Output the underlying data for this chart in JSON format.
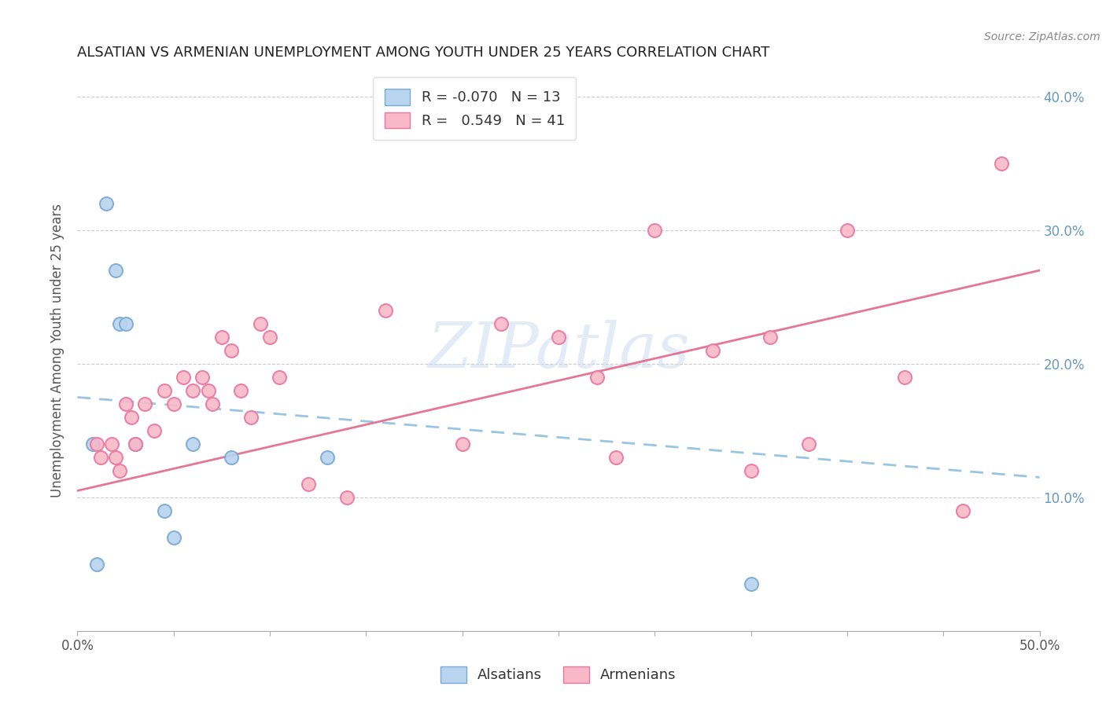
{
  "title": "ALSATIAN VS ARMENIAN UNEMPLOYMENT AMONG YOUTH UNDER 25 YEARS CORRELATION CHART",
  "source": "Source: ZipAtlas.com",
  "ylabel": "Unemployment Among Youth under 25 years",
  "xlim": [
    0.0,
    0.5
  ],
  "ylim": [
    0.0,
    0.42
  ],
  "alsatian_R": -0.07,
  "alsatian_N": 13,
  "armenian_R": 0.549,
  "armenian_N": 41,
  "alsatian_fill": "#b8d4ee",
  "armenian_fill": "#f8b8c8",
  "alsatian_edge": "#7aaad4",
  "armenian_edge": "#e878a0",
  "alsatian_line_color": "#88bbdd",
  "armenian_line_color": "#e06888",
  "tick_label_color": "#6699bb",
  "watermark_color": "#ccddf0",
  "alsatian_points_x": [
    0.008,
    0.01,
    0.015,
    0.02,
    0.022,
    0.025,
    0.03,
    0.045,
    0.05,
    0.06,
    0.08,
    0.13,
    0.35
  ],
  "alsatian_points_y": [
    0.14,
    0.05,
    0.32,
    0.27,
    0.23,
    0.23,
    0.14,
    0.09,
    0.07,
    0.14,
    0.13,
    0.13,
    0.035
  ],
  "armenian_points_x": [
    0.01,
    0.012,
    0.018,
    0.02,
    0.022,
    0.025,
    0.028,
    0.03,
    0.035,
    0.04,
    0.045,
    0.05,
    0.055,
    0.06,
    0.065,
    0.068,
    0.07,
    0.075,
    0.08,
    0.085,
    0.09,
    0.095,
    0.1,
    0.105,
    0.12,
    0.14,
    0.16,
    0.2,
    0.22,
    0.25,
    0.27,
    0.28,
    0.3,
    0.33,
    0.35,
    0.36,
    0.38,
    0.4,
    0.43,
    0.46,
    0.48
  ],
  "armenian_points_y": [
    0.14,
    0.13,
    0.14,
    0.13,
    0.12,
    0.17,
    0.16,
    0.14,
    0.17,
    0.15,
    0.18,
    0.17,
    0.19,
    0.18,
    0.19,
    0.18,
    0.17,
    0.22,
    0.21,
    0.18,
    0.16,
    0.23,
    0.22,
    0.19,
    0.11,
    0.1,
    0.24,
    0.14,
    0.23,
    0.22,
    0.19,
    0.13,
    0.3,
    0.21,
    0.12,
    0.22,
    0.14,
    0.3,
    0.19,
    0.09,
    0.35
  ],
  "alsatian_line_x": [
    0.0,
    0.5
  ],
  "alsatian_line_y_start": 0.175,
  "alsatian_line_y_end": 0.115,
  "armenian_line_x": [
    0.0,
    0.5
  ],
  "armenian_line_y_start": 0.105,
  "armenian_line_y_end": 0.27
}
